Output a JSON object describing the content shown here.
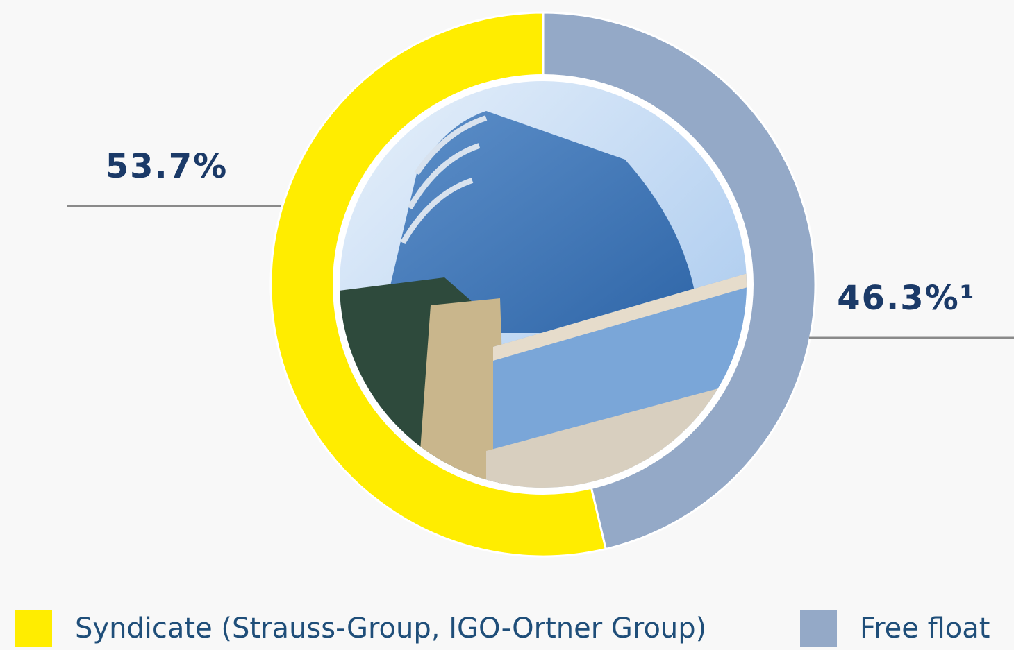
{
  "chart_data": {
    "type": "pie",
    "donut": true,
    "categories": [
      "Syndicate (Strauss-Group, IGO-Ortner Group)",
      "Free float"
    ],
    "values": [
      53.7,
      46.3
    ],
    "value_labels": [
      "53.7%",
      "46.3%¹"
    ],
    "colors": [
      "#ffed00",
      "#94a9c7"
    ]
  }
}
